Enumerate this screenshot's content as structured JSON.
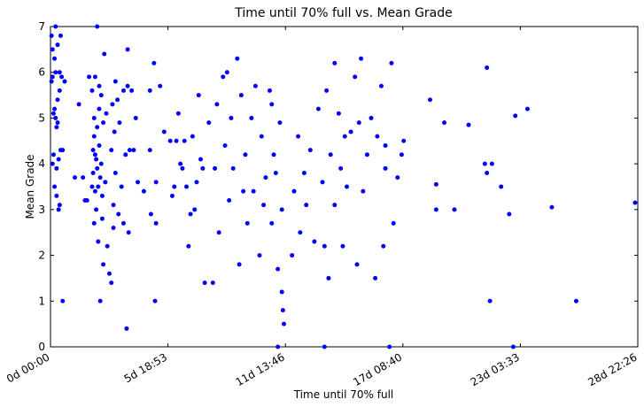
{
  "chart_data": {
    "type": "scatter",
    "title": "Time until 70% full vs. Mean Grade",
    "x_label": "Time until 70% full",
    "y_label": "Mean Grade",
    "color": "#0000ff",
    "xlim": [
      0,
      28.9347
    ],
    "ylim": [
      0,
      7
    ],
    "xticks": [
      {
        "value": 0,
        "label": "0d 00:00"
      },
      {
        "value": 5.7868,
        "label": "5d 18:53"
      },
      {
        "value": 11.5736,
        "label": "11d 13:46"
      },
      {
        "value": 17.3611,
        "label": "17d 08:40"
      },
      {
        "value": 23.1479,
        "label": "23d 03:33"
      },
      {
        "value": 28.9347,
        "label": "28d 22:26"
      }
    ],
    "yticks": [
      0,
      1,
      2,
      3,
      4,
      5,
      6,
      7
    ],
    "x": [
      0.05,
      0.1,
      0.1,
      0.15,
      0.15,
      0.2,
      0.2,
      0.25,
      0.25,
      0.3,
      0.3,
      0.35,
      0.35,
      0.4,
      0.4,
      0.45,
      0.45,
      0.5,
      0.5,
      0.55,
      0.6,
      0.6,
      0.7,
      0.25,
      0.1,
      0.2,
      0.35,
      0.05,
      0.3,
      0.45,
      1.2,
      1.4,
      1.6,
      1.8,
      1.9,
      1.7,
      2.05,
      2.1,
      2.1,
      2.15,
      2.15,
      2.2,
      2.2,
      2.25,
      2.25,
      2.3,
      2.3,
      2.35,
      2.35,
      2.4,
      2.4,
      2.45,
      2.45,
      2.5,
      2.5,
      2.55,
      2.55,
      2.6,
      2.6,
      2.65,
      2.7,
      2.75,
      2.8,
      2.2,
      2.3,
      2.4,
      2.15,
      2.05,
      2.9,
      3.0,
      3.0,
      3.05,
      3.1,
      3.1,
      3.15,
      3.2,
      3.2,
      3.3,
      3.35,
      3.4,
      3.5,
      3.6,
      3.6,
      3.7,
      3.75,
      3.8,
      3.8,
      3.85,
      3.9,
      4.0,
      4.1,
      4.2,
      4.3,
      4.6,
      4.9,
      4.9,
      4.95,
      5.1,
      5.15,
      5.2,
      5.2,
      5.4,
      5.6,
      5.9,
      6.0,
      6.1,
      6.2,
      6.3,
      6.5,
      6.6,
      6.7,
      6.8,
      7.0,
      7.1,
      7.3,
      7.2,
      7.5,
      7.6,
      7.8,
      8.0,
      8.1,
      8.2,
      8.3,
      8.5,
      8.6,
      8.8,
      8.9,
      9.0,
      9.2,
      9.3,
      9.4,
      9.6,
      9.7,
      9.9,
      10.0,
      10.1,
      10.3,
      10.4,
      10.5,
      10.6,
      10.8,
      10.9,
      11.0,
      11.1,
      11.2,
      11.3,
      11.4,
      11.45,
      11.5,
      11.4,
      11.2,
      11.9,
      12.0,
      12.2,
      12.3,
      12.5,
      12.8,
      13.0,
      13.2,
      13.4,
      13.5,
      13.6,
      13.7,
      13.8,
      14.0,
      14.0,
      14.2,
      14.3,
      14.4,
      14.5,
      14.6,
      14.8,
      15.0,
      15.1,
      15.2,
      15.3,
      15.4,
      15.6,
      15.8,
      16.0,
      16.1,
      16.3,
      16.4,
      16.5,
      16.5,
      16.7,
      16.8,
      16.9,
      17.1,
      17.3,
      17.4,
      13.5,
      12.6,
      10.9,
      9.5,
      8.7,
      6.4,
      6.9,
      7.4,
      18.7,
      19.0,
      19.0,
      19.4,
      19.9,
      20.6,
      21.4,
      21.5,
      21.5,
      21.65,
      21.75,
      22.2,
      22.6,
      22.8,
      22.9,
      23.5,
      24.7,
      25.9,
      28.8
    ],
    "values": [
      6.8,
      6.5,
      5.9,
      5.1,
      4.2,
      3.5,
      6.3,
      6.0,
      5.0,
      4.8,
      3.3,
      6.6,
      5.4,
      4.1,
      3.0,
      6.0,
      5.6,
      4.3,
      6.8,
      5.9,
      4.3,
      1.0,
      5.8,
      7.0,
      4.0,
      5.2,
      4.9,
      5.8,
      3.9,
      3.1,
      3.7,
      5.3,
      3.7,
      3.2,
      5.9,
      3.2,
      5.6,
      4.3,
      3.8,
      5.0,
      4.6,
      3.4,
      5.9,
      4.1,
      3.0,
      4.8,
      7.0,
      3.5,
      2.3,
      5.2,
      4.4,
      3.7,
      1.0,
      5.5,
      4.0,
      3.3,
      2.8,
      1.8,
      4.9,
      6.4,
      3.6,
      5.1,
      2.2,
      4.2,
      3.9,
      5.7,
      2.7,
      3.5,
      1.6,
      1.4,
      4.3,
      5.3,
      3.1,
      2.6,
      4.7,
      5.8,
      3.8,
      5.4,
      2.9,
      4.9,
      3.5,
      5.6,
      2.7,
      4.2,
      0.4,
      5.7,
      6.5,
      2.5,
      4.3,
      5.6,
      4.3,
      5.0,
      3.6,
      3.4,
      5.6,
      4.3,
      2.9,
      6.2,
      1.0,
      3.6,
      2.7,
      5.7,
      4.7,
      4.5,
      3.3,
      3.5,
      4.5,
      5.1,
      3.9,
      4.5,
      3.5,
      2.2,
      4.6,
      3.0,
      5.5,
      3.6,
      3.9,
      1.4,
      4.9,
      1.4,
      3.9,
      5.3,
      2.5,
      5.9,
      4.4,
      3.2,
      5.0,
      3.9,
      6.3,
      1.8,
      5.5,
      4.2,
      2.7,
      5.0,
      3.4,
      5.7,
      2.0,
      4.6,
      3.1,
      3.7,
      5.6,
      2.7,
      4.2,
      3.8,
      1.7,
      4.9,
      1.2,
      0.8,
      0.5,
      3.0,
      0,
      2.0,
      3.4,
      4.6,
      2.5,
      3.8,
      4.3,
      2.3,
      5.2,
      3.6,
      2.2,
      5.6,
      1.5,
      4.2,
      6.2,
      3.1,
      5.1,
      3.9,
      2.2,
      4.6,
      3.5,
      4.7,
      5.9,
      1.8,
      4.9,
      6.3,
      3.4,
      4.2,
      5.0,
      1.5,
      4.6,
      5.7,
      2.2,
      3.9,
      4.4,
      0,
      6.2,
      2.7,
      3.7,
      4.2,
      4.5,
      0,
      3.1,
      5.3,
      3.4,
      6.0,
      4.0,
      2.9,
      4.1,
      5.4,
      3.55,
      3.0,
      4.9,
      3.0,
      4.85,
      4.0,
      6.1,
      3.8,
      1.0,
      4.0,
      3.5,
      2.9,
      0,
      5.05,
      5.2,
      3.05,
      1.0,
      3.15
    ]
  }
}
